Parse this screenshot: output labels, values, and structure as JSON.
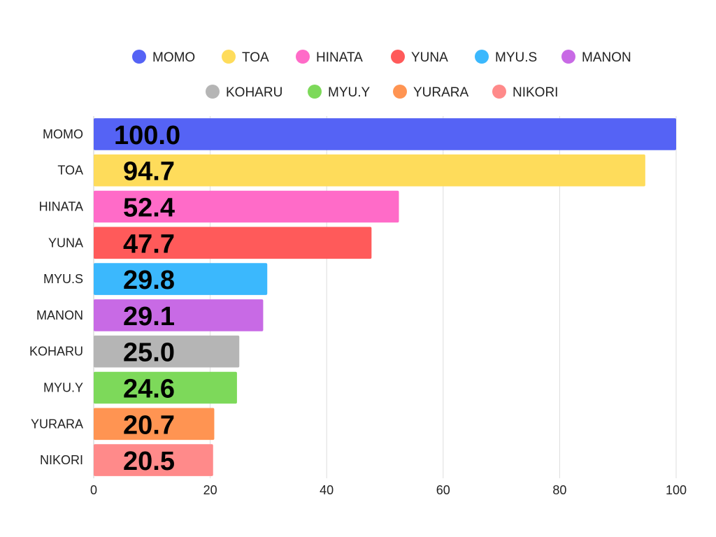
{
  "chart_data": {
    "type": "bar",
    "orientation": "horizontal",
    "categories": [
      "MOMO",
      "TOA",
      "HINATA",
      "YUNA",
      "MYU.S",
      "MANON",
      "KOHARU",
      "MYU.Y",
      "YURARA",
      "NIKORI"
    ],
    "values": [
      100.0,
      94.7,
      52.4,
      47.7,
      29.8,
      29.1,
      25.0,
      24.6,
      20.7,
      20.5
    ],
    "value_labels": [
      "100.0",
      "94.7",
      "52.4",
      "47.7",
      "29.8",
      "29.1",
      "25.0",
      "24.6",
      "20.7",
      "20.5"
    ],
    "colors": [
      "#5563f5",
      "#fedc5b",
      "#ff6bc8",
      "#ff5a5a",
      "#3bb8fd",
      "#c86ae5",
      "#b5b5b5",
      "#7dd95a",
      "#ff9452",
      "#ff8a8a"
    ],
    "legend": [
      "MOMO",
      "TOA",
      "HINATA",
      "YUNA",
      "MYU.S",
      "MANON",
      "KOHARU",
      "MYU.Y",
      "YURARA",
      "NIKORI"
    ],
    "legend_position": "top",
    "xlim": [
      0,
      100
    ],
    "xticks": [
      0,
      20,
      40,
      60,
      80,
      100
    ],
    "grid": true,
    "title": "",
    "xlabel": "",
    "ylabel": ""
  }
}
